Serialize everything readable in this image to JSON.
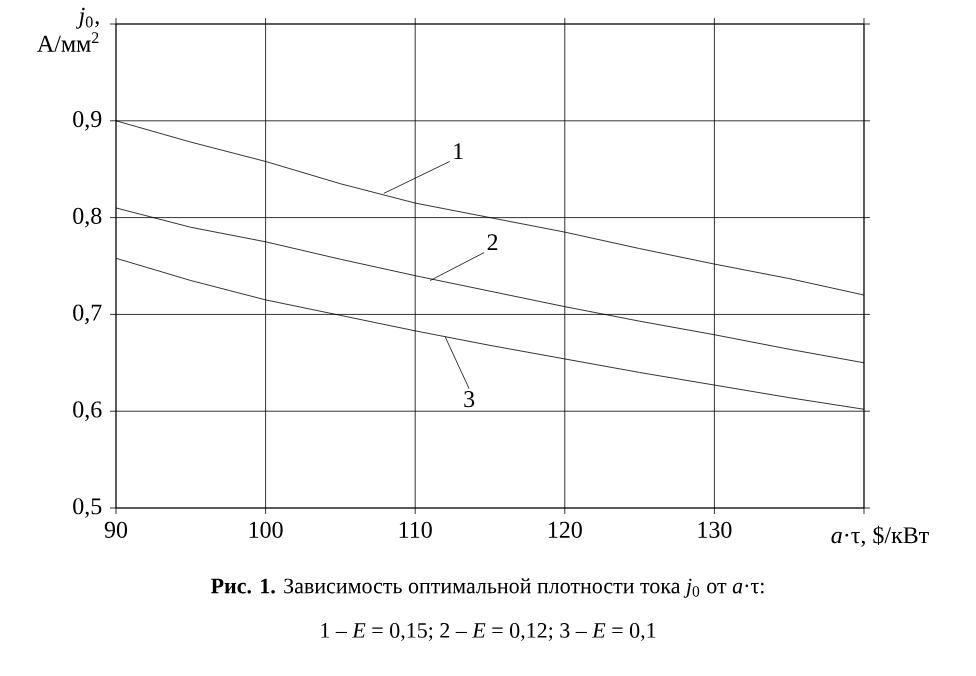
{
  "chart_data": {
    "type": "line",
    "xlabel": "*a*·τ, $/кВт",
    "ylabel": "*j*$_{0}$, А/мм$^{2}$",
    "x": [
      90,
      95,
      100,
      105,
      110,
      115,
      120,
      125,
      130,
      135,
      140
    ],
    "series": [
      {
        "color": "#000000",
        "values": [
          0.9,
          0.878,
          0.858,
          0.835,
          0.815,
          0.8,
          0.785,
          0.768,
          0.752,
          0.737,
          0.72
        ]
      },
      {
        "color": "#000000",
        "values": [
          0.81,
          0.79,
          0.775,
          0.757,
          0.74,
          0.724,
          0.708,
          0.693,
          0.679,
          0.664,
          0.65
        ]
      },
      {
        "color": "#000000",
        "values": [
          0.758,
          0.735,
          0.715,
          0.699,
          0.683,
          0.668,
          0.654,
          0.64,
          0.627,
          0.614,
          0.602
        ]
      }
    ],
    "xlim": [
      90,
      140
    ],
    "ylim": [
      0.5,
      1.0
    ],
    "xticks": [
      90,
      100,
      110,
      120,
      130,
      {
        "value": 140,
        "label": null
      }
    ],
    "yticks": [
      {
        "value": 0.5,
        "label": "0,5"
      },
      {
        "value": 0.6,
        "label": "0,6"
      },
      {
        "value": 0.7,
        "label": "0,7"
      },
      {
        "value": 0.8,
        "label": "0,8"
      },
      {
        "value": 0.9,
        "label": "0,9"
      },
      {
        "value": 1.0,
        "label": null
      }
    ],
    "grid": true,
    "marker": "none",
    "line_style": "solid",
    "annotations": [
      {
        "text": "1",
        "x": 107.9,
        "y": 0.825
      },
      {
        "text": "2",
        "x": 111,
        "y": 0.735
      },
      {
        "text": "3",
        "x": 112,
        "y": 0.677
      },
      "**Рис. 1.** Зависимость оптимальной плотности тока *j*$_{0}$ от *a*·τ:",
      "1 – *E* = 0,15;  2 – *E* = 0,12;  3 – *E* = 0,1"
    ]
  }
}
